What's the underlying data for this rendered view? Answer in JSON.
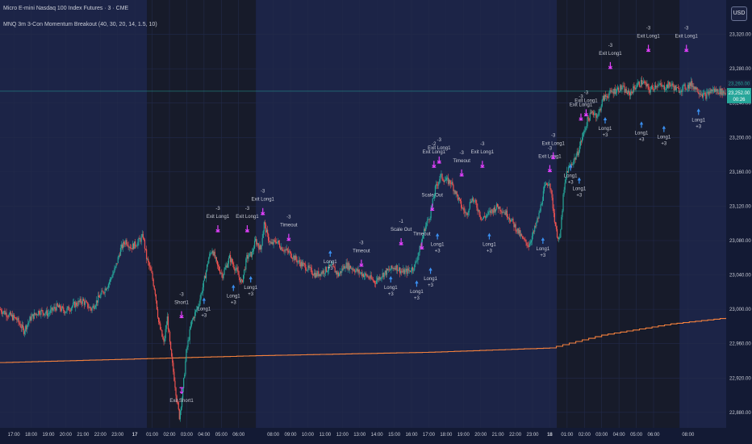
{
  "header": {
    "symbol_title": "Micro E-mini Nasdaq 100 Index Futures · 3 · CME",
    "indicator_title": "MNQ 3m 3-Con Momentum Breakout (40, 30, 20, 14, 1.5, 10)"
  },
  "price_scale": {
    "currency_button": "USD",
    "current_price_label": "23,252.00",
    "countdown_label": "00:26",
    "line_price_label": "23,260.00"
  },
  "colors": {
    "background": "#131a34",
    "session_shade": "#1c2447",
    "offsession_shade": "#171b2a",
    "grid": "#222a4a",
    "candle_up": "#26a69a",
    "candle_down": "#ef5350",
    "moving_average": "#f5813d",
    "signal_marker": "#e040fb",
    "long_arrow": "#3a8ff0",
    "text": "#c9ccd6",
    "price_tag": "#26a69a"
  },
  "chart_data": {
    "type": "candlestick",
    "y_axis": {
      "ticks": [
        22880,
        22920,
        22960,
        23000,
        23040,
        23080,
        23120,
        23160,
        23200,
        23240,
        23280,
        23320
      ],
      "tick_labels": [
        "22,880.00",
        "22,920.00",
        "22,960.00",
        "23,000.00",
        "23,040.00",
        "23,080.00",
        "23,120.00",
        "23,160.00",
        "23,200.00",
        "23,240.00",
        "23,280.00",
        "23,320.00"
      ],
      "range": [
        22862,
        23360
      ]
    },
    "x_axis": {
      "tick_labels": [
        "17:00",
        "18:00",
        "19:00",
        "20:00",
        "21:00",
        "22:00",
        "23:00",
        "17",
        "01:00",
        "02:00",
        "03:00",
        "04:00",
        "05:00",
        "06:00",
        "08:00",
        "09:00",
        "10:00",
        "11:00",
        "12:00",
        "13:00",
        "14:00",
        "15:00",
        "16:00",
        "17:00",
        "18:00",
        "19:00",
        "20:00",
        "21:00",
        "22:00",
        "23:00",
        "18",
        "01:00",
        "02:00",
        "03:00",
        "04:00",
        "05:00",
        "06:00",
        "08:00"
      ],
      "tick_hours": [
        0,
        1,
        2,
        3,
        4,
        5,
        6,
        7,
        8,
        9,
        10,
        11,
        12,
        13,
        15,
        16,
        17,
        18,
        19,
        20,
        21,
        22,
        23,
        24,
        25,
        26,
        27,
        28,
        29,
        30,
        31,
        32,
        33,
        34,
        35,
        36,
        37,
        39
      ],
      "range_hours": [
        -0.8,
        41.2
      ],
      "bold_labels": [
        "17",
        "18"
      ]
    },
    "sessions": [
      {
        "start_hour": -0.8,
        "end_hour": 7.7,
        "kind": "session"
      },
      {
        "start_hour": 7.7,
        "end_hour": 14.0,
        "kind": "off"
      },
      {
        "start_hour": 14.0,
        "end_hour": 31.4,
        "kind": "session"
      },
      {
        "start_hour": 31.4,
        "end_hour": 38.5,
        "kind": "off"
      },
      {
        "start_hour": 38.5,
        "end_hour": 41.2,
        "kind": "session"
      }
    ],
    "price_path": [
      [
        -0.8,
        23000
      ],
      [
        -0.4,
        22995
      ],
      [
        0.2,
        22988
      ],
      [
        0.6,
        22975
      ],
      [
        1.0,
        22990
      ],
      [
        1.5,
        22998
      ],
      [
        2.0,
        22995
      ],
      [
        2.5,
        23003
      ],
      [
        3.0,
        22998
      ],
      [
        3.5,
        23005
      ],
      [
        4.0,
        23010
      ],
      [
        4.5,
        23000
      ],
      [
        5.0,
        23015
      ],
      [
        5.5,
        23030
      ],
      [
        5.9,
        23048
      ],
      [
        6.2,
        23070
      ],
      [
        6.5,
        23080
      ],
      [
        6.8,
        23072
      ],
      [
        7.2,
        23078
      ],
      [
        7.5,
        23085
      ],
      [
        7.7,
        23060
      ],
      [
        8.0,
        23040
      ],
      [
        8.2,
        23020
      ],
      [
        8.4,
        22985
      ],
      [
        8.7,
        22960
      ],
      [
        8.9,
        22990
      ],
      [
        9.1,
        22950
      ],
      [
        9.3,
        22920
      ],
      [
        9.45,
        22895
      ],
      [
        9.6,
        22875
      ],
      [
        9.8,
        22905
      ],
      [
        10.0,
        22950
      ],
      [
        10.3,
        22985
      ],
      [
        10.7,
        23005
      ],
      [
        11.0,
        23030
      ],
      [
        11.3,
        23060
      ],
      [
        11.5,
        23070
      ],
      [
        11.8,
        23050
      ],
      [
        12.1,
        23040
      ],
      [
        12.5,
        23060
      ],
      [
        12.9,
        23045
      ],
      [
        13.2,
        23030
      ],
      [
        13.5,
        23060
      ],
      [
        13.8,
        23065
      ],
      [
        14.0,
        23080
      ],
      [
        14.3,
        23070
      ],
      [
        14.5,
        23100
      ],
      [
        14.7,
        23085
      ],
      [
        14.9,
        23075
      ],
      [
        15.2,
        23080
      ],
      [
        15.5,
        23072
      ],
      [
        16.0,
        23065
      ],
      [
        16.5,
        23055
      ],
      [
        17.0,
        23048
      ],
      [
        17.5,
        23040
      ],
      [
        18.0,
        23045
      ],
      [
        18.4,
        23050
      ],
      [
        18.8,
        23040
      ],
      [
        19.2,
        23052
      ],
      [
        19.6,
        23048
      ],
      [
        20.0,
        23043
      ],
      [
        20.5,
        23038
      ],
      [
        20.9,
        23032
      ],
      [
        21.3,
        23040
      ],
      [
        21.7,
        23045
      ],
      [
        22.1,
        23050
      ],
      [
        22.5,
        23043
      ],
      [
        22.9,
        23045
      ],
      [
        23.2,
        23050
      ],
      [
        23.5,
        23070
      ],
      [
        23.8,
        23095
      ],
      [
        24.1,
        23110
      ],
      [
        24.4,
        23140
      ],
      [
        24.7,
        23155
      ],
      [
        25.0,
        23150
      ],
      [
        25.3,
        23148
      ],
      [
        25.6,
        23135
      ],
      [
        25.9,
        23120
      ],
      [
        26.2,
        23110
      ],
      [
        26.5,
        23130
      ],
      [
        26.8,
        23120
      ],
      [
        27.1,
        23105
      ],
      [
        27.4,
        23110
      ],
      [
        27.7,
        23115
      ],
      [
        28.0,
        23120
      ],
      [
        28.3,
        23115
      ],
      [
        28.6,
        23110
      ],
      [
        28.9,
        23100
      ],
      [
        29.2,
        23090
      ],
      [
        29.5,
        23080
      ],
      [
        29.8,
        23075
      ],
      [
        30.1,
        23090
      ],
      [
        30.4,
        23110
      ],
      [
        30.7,
        23140
      ],
      [
        31.0,
        23150
      ],
      [
        31.2,
        23120
      ],
      [
        31.4,
        23090
      ],
      [
        31.6,
        23080
      ],
      [
        31.8,
        23130
      ],
      [
        32.0,
        23160
      ],
      [
        32.3,
        23170
      ],
      [
        32.6,
        23180
      ],
      [
        32.9,
        23200
      ],
      [
        33.2,
        23220
      ],
      [
        33.5,
        23230
      ],
      [
        33.8,
        23225
      ],
      [
        34.1,
        23245
      ],
      [
        34.4,
        23250
      ],
      [
        34.8,
        23255
      ],
      [
        35.2,
        23258
      ],
      [
        35.6,
        23250
      ],
      [
        36.0,
        23260
      ],
      [
        36.4,
        23265
      ],
      [
        36.8,
        23255
      ],
      [
        37.2,
        23262
      ],
      [
        37.6,
        23258
      ],
      [
        38.0,
        23262
      ],
      [
        38.4,
        23255
      ],
      [
        38.8,
        23258
      ],
      [
        39.2,
        23262
      ],
      [
        39.6,
        23255
      ],
      [
        40.0,
        23248
      ],
      [
        40.4,
        23255
      ],
      [
        40.8,
        23254
      ],
      [
        41.2,
        23252
      ]
    ],
    "moving_average": [
      [
        -0.8,
        22938
      ],
      [
        14.0,
        22946
      ],
      [
        24.0,
        22950
      ],
      [
        31.0,
        22955
      ],
      [
        34.0,
        22970
      ],
      [
        38.0,
        22983
      ],
      [
        41.2,
        22990
      ]
    ],
    "signals": [
      {
        "hour": 11.0,
        "price": 23010,
        "kind": "long",
        "labels": [
          "Long1",
          "+3"
        ]
      },
      {
        "hour": 12.7,
        "price": 23025,
        "kind": "long",
        "labels": [
          "Long1",
          "+3"
        ]
      },
      {
        "hour": 13.7,
        "price": 23035,
        "kind": "long",
        "labels": [
          "Long1",
          "+3"
        ]
      },
      {
        "hour": 9.7,
        "price": 22905,
        "kind": "exit-short",
        "labels": [
          "Exit Short1"
        ]
      },
      {
        "hour": 9.7,
        "price": 22995,
        "kind": "short",
        "labels": [
          "-3",
          "Short1"
        ]
      },
      {
        "hour": 11.8,
        "price": 23095,
        "kind": "exit",
        "labels": [
          "-3",
          "Exit Long1"
        ]
      },
      {
        "hour": 13.5,
        "price": 23095,
        "kind": "exit",
        "labels": [
          "-3",
          "Exit Long1"
        ]
      },
      {
        "hour": 14.4,
        "price": 23115,
        "kind": "exit",
        "labels": [
          "-3",
          "Exit Long1"
        ]
      },
      {
        "hour": 15.9,
        "price": 23085,
        "kind": "timeout",
        "labels": [
          "-3",
          "Timeout"
        ]
      },
      {
        "hour": 18.3,
        "price": 23065,
        "kind": "long",
        "labels": [
          "Long1",
          "+3"
        ]
      },
      {
        "hour": 20.1,
        "price": 23055,
        "kind": "timeout",
        "labels": [
          "-3",
          "Timeout"
        ]
      },
      {
        "hour": 21.8,
        "price": 23035,
        "kind": "long",
        "labels": [
          "Long1",
          "+3"
        ]
      },
      {
        "hour": 22.4,
        "price": 23080,
        "kind": "scale",
        "labels": [
          "-1",
          "Scale Out"
        ]
      },
      {
        "hour": 23.3,
        "price": 23030,
        "kind": "long",
        "labels": [
          "Long1",
          "+3"
        ]
      },
      {
        "hour": 23.6,
        "price": 23075,
        "kind": "timeout",
        "labels": [
          "Timeout"
        ]
      },
      {
        "hour": 24.1,
        "price": 23045,
        "kind": "long",
        "labels": [
          "Long1",
          "+3"
        ]
      },
      {
        "hour": 24.2,
        "price": 23120,
        "kind": "scale",
        "labels": [
          "Scale Out"
        ]
      },
      {
        "hour": 24.5,
        "price": 23085,
        "kind": "long",
        "labels": [
          "Long1",
          "+3"
        ]
      },
      {
        "hour": 24.3,
        "price": 23170,
        "kind": "exit",
        "labels": [
          "-2",
          "Exit Long1"
        ]
      },
      {
        "hour": 24.6,
        "price": 23175,
        "kind": "exit",
        "labels": [
          "-3",
          "Exit Long1"
        ]
      },
      {
        "hour": 25.9,
        "price": 23160,
        "kind": "timeout",
        "labels": [
          "-3",
          "Timeout"
        ]
      },
      {
        "hour": 27.1,
        "price": 23170,
        "kind": "exit",
        "labels": [
          "-3",
          "Exit Long1"
        ]
      },
      {
        "hour": 27.5,
        "price": 23085,
        "kind": "long",
        "labels": [
          "Long1",
          "+3"
        ]
      },
      {
        "hour": 30.6,
        "price": 23080,
        "kind": "long",
        "labels": [
          "Long1",
          "+3"
        ]
      },
      {
        "hour": 31.0,
        "price": 23165,
        "kind": "exit",
        "labels": [
          "-3",
          "Exit Long1"
        ]
      },
      {
        "hour": 31.2,
        "price": 23180,
        "kind": "exit",
        "labels": [
          "-3",
          "Exit Long1"
        ]
      },
      {
        "hour": 32.2,
        "price": 23165,
        "kind": "long",
        "labels": [
          "Long1",
          "+3"
        ]
      },
      {
        "hour": 32.7,
        "price": 23150,
        "kind": "long",
        "labels": [
          "Long1",
          "+3"
        ]
      },
      {
        "hour": 32.8,
        "price": 23225,
        "kind": "exit",
        "labels": [
          "-3",
          "Exit Long1"
        ]
      },
      {
        "hour": 33.1,
        "price": 23230,
        "kind": "exit",
        "labels": [
          "-3",
          "Exit Long1"
        ]
      },
      {
        "hour": 34.2,
        "price": 23220,
        "kind": "long",
        "labels": [
          "Long1",
          "+3"
        ]
      },
      {
        "hour": 34.5,
        "price": 23285,
        "kind": "exit",
        "labels": [
          "-3",
          "Exit Long1"
        ]
      },
      {
        "hour": 36.3,
        "price": 23215,
        "kind": "long",
        "labels": [
          "Long1",
          "+3"
        ]
      },
      {
        "hour": 36.7,
        "price": 23305,
        "kind": "exit",
        "labels": [
          "-3",
          "Exit Long1"
        ]
      },
      {
        "hour": 37.6,
        "price": 23210,
        "kind": "long",
        "labels": [
          "Long1",
          "+3"
        ]
      },
      {
        "hour": 38.9,
        "price": 23305,
        "kind": "exit",
        "labels": [
          "-3",
          "Exit Long1"
        ]
      },
      {
        "hour": 39.6,
        "price": 23230,
        "kind": "long",
        "labels": [
          "Long1",
          "+3"
        ]
      }
    ]
  }
}
